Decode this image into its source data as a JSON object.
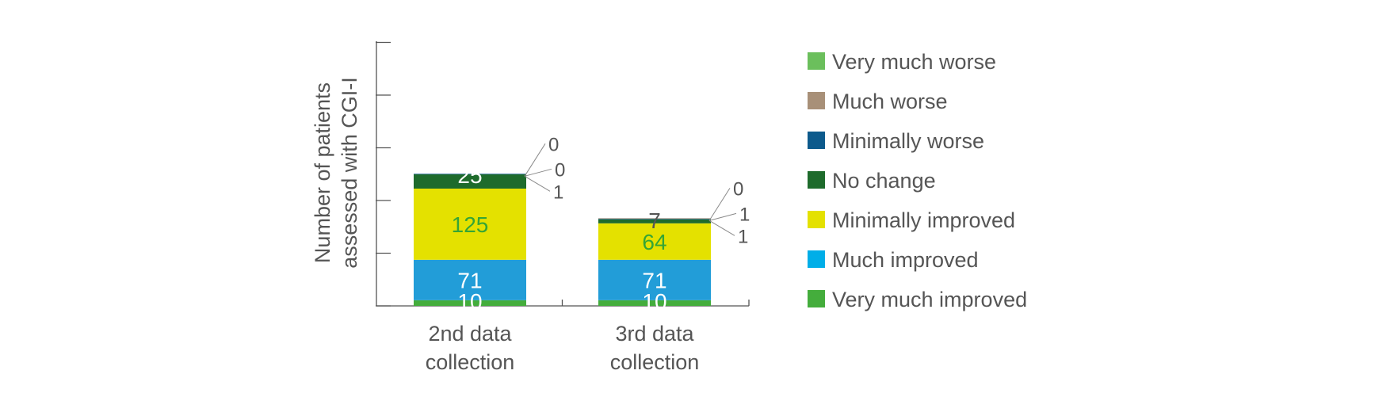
{
  "chart_data": {
    "type": "bar",
    "stacked": true,
    "title": "",
    "xlabel": "",
    "ylabel": "Number of patients assessed with CGI-I",
    "ylabel_lines": [
      "Number of patients",
      "assessed with CGI-I"
    ],
    "grid": false,
    "legend_position": "right",
    "categories": [
      "2nd data collection",
      "3rd data collection"
    ],
    "category_lines": [
      [
        "2nd data",
        "collection"
      ],
      [
        "3rd data",
        "collection"
      ]
    ],
    "series": [
      {
        "name": "Very much improved",
        "color": "#44ad3c",
        "label_color": "#ffffff",
        "values": [
          10,
          10
        ]
      },
      {
        "name": "Much improved",
        "color": "#229dd8",
        "label_color": "#ffffff",
        "values": [
          71,
          71
        ]
      },
      {
        "name": "Minimally improved",
        "color": "#e4e100",
        "label_color": "#35a535",
        "values": [
          125,
          64
        ]
      },
      {
        "name": "No change",
        "color": "#1e6b2c",
        "label_color": "#ffffff",
        "values": [
          25,
          7
        ]
      },
      {
        "name": "Minimally worse",
        "color": "#0d5a8c",
        "label_color": "#ffffff",
        "values": [
          1,
          1
        ]
      },
      {
        "name": "Much worse",
        "color": "#a89078",
        "label_color": "#ffffff",
        "values": [
          0,
          1
        ]
      },
      {
        "name": "Very much worse",
        "color": "#6bbf5c",
        "label_color": "#ffffff",
        "values": [
          0,
          0
        ]
      }
    ],
    "legend_items": [
      {
        "name": "Very much worse",
        "color": "#6bbf5c"
      },
      {
        "name": "Much worse",
        "color": "#a89078"
      },
      {
        "name": "Minimally worse",
        "color": "#0d5a8c"
      },
      {
        "name": "No change",
        "color": "#1e6b2c"
      },
      {
        "name": "Minimally improved",
        "color": "#e4e100"
      },
      {
        "name": "Much improved",
        "color": "#00aee8"
      },
      {
        "name": "Very much improved",
        "color": "#44ad3c"
      }
    ],
    "small_value_labels": [
      [
        "1",
        "0",
        "0"
      ],
      [
        "1",
        "1",
        "0"
      ]
    ]
  }
}
